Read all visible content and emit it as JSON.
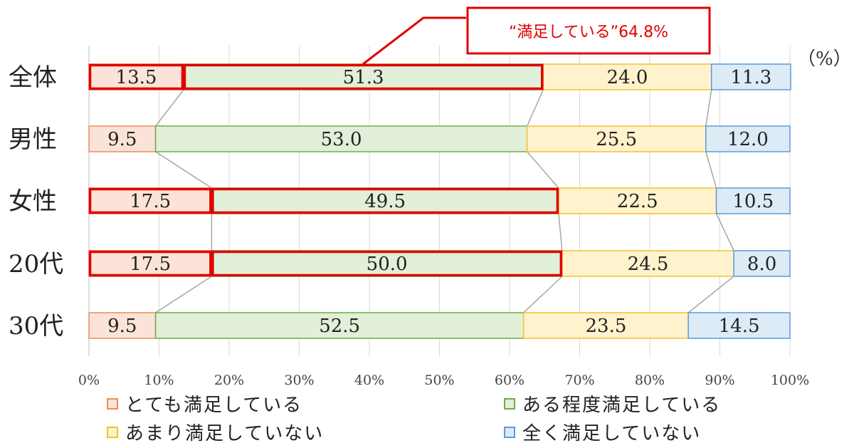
{
  "unit_label": "（%）",
  "callout": {
    "text": "“満足している”64.8%"
  },
  "legend": [
    {
      "label": "とても満足している",
      "fill": "#fbe3d7",
      "stroke": "#ed8c5a"
    },
    {
      "label": "ある程度満足している",
      "fill": "#e2efd9",
      "stroke": "#70ad47"
    },
    {
      "label": "あまり満足していない",
      "fill": "#fff2cc",
      "stroke": "#f4c22c"
    },
    {
      "label": "全く満足していない",
      "fill": "#ddebf7",
      "stroke": "#5b9bd5"
    }
  ],
  "chart_data": {
    "type": "bar",
    "orientation": "horizontal",
    "stacked": true,
    "categories": [
      "全体",
      "男性",
      "女性",
      "20代",
      "30代"
    ],
    "series": [
      {
        "name": "とても満足している",
        "values": [
          13.5,
          9.5,
          17.5,
          17.5,
          9.5
        ]
      },
      {
        "name": "ある程度満足している",
        "values": [
          51.3,
          53.0,
          49.5,
          50.0,
          52.5
        ]
      },
      {
        "name": "あまり満足していない",
        "values": [
          24.0,
          25.5,
          22.5,
          24.5,
          23.5
        ]
      },
      {
        "name": "全く満足していない",
        "values": [
          11.3,
          12.0,
          10.5,
          8.0,
          14.5
        ]
      }
    ],
    "value_labels": [
      [
        "13.5",
        "51.3",
        "24.0",
        "11.3"
      ],
      [
        "9.5",
        "53.0",
        "25.5",
        "12.0"
      ],
      [
        "17.5",
        "49.5",
        "22.5",
        "10.5"
      ],
      [
        "17.5",
        "50.0",
        "24.5",
        "8.0"
      ],
      [
        "9.5",
        "52.5",
        "23.5",
        "14.5"
      ]
    ],
    "xticks": [
      "0%",
      "10%",
      "20%",
      "30%",
      "40%",
      "50%",
      "60%",
      "70%",
      "80%",
      "90%",
      "100%"
    ],
    "xlim": [
      0,
      100
    ],
    "grid": true,
    "highlighted_categories": [
      "全体",
      "女性",
      "20代"
    ],
    "legend_position": "bottom"
  }
}
